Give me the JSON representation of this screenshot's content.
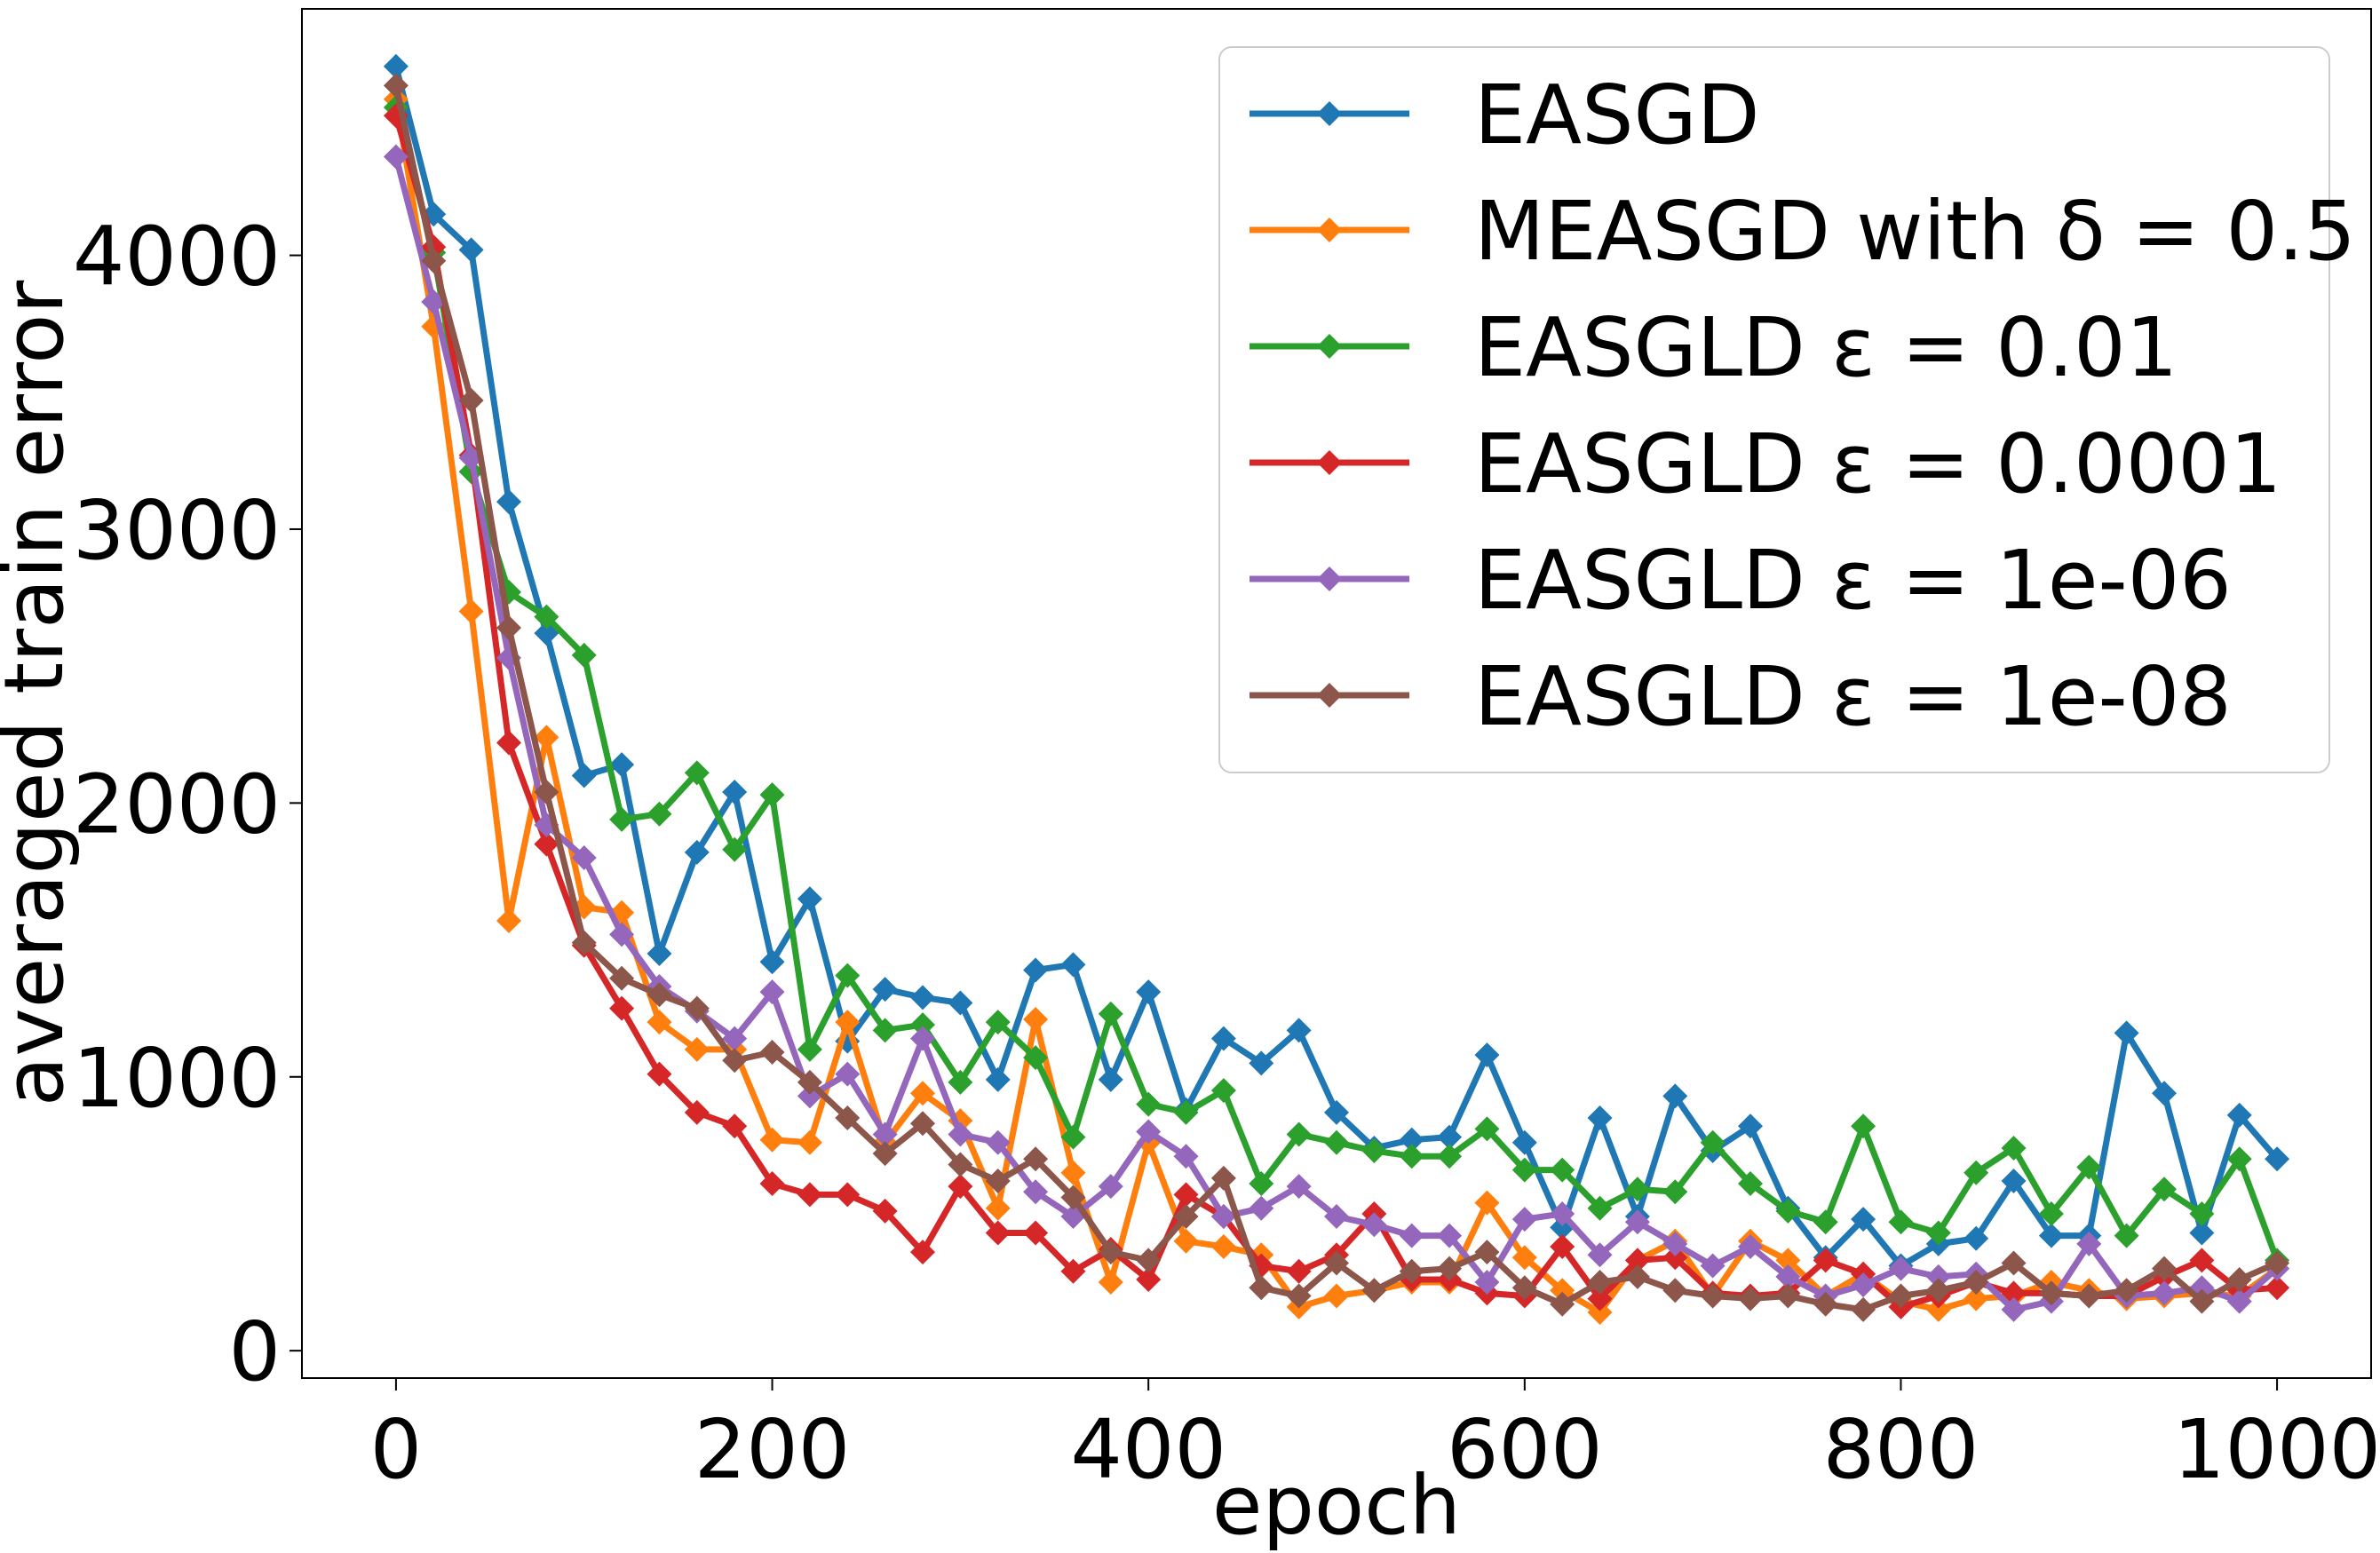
{
  "chart_data": {
    "type": "line",
    "xlabel": "epoch",
    "ylabel": "averaged train error",
    "xlim": [
      -50,
      1050
    ],
    "ylim": [
      -100,
      4900
    ],
    "xticks": [
      0,
      200,
      400,
      600,
      800,
      1000
    ],
    "yticks": [
      0,
      1000,
      2000,
      3000,
      4000
    ],
    "xtick_labels": [
      "0",
      "200",
      "400",
      "600",
      "800",
      "1000"
    ],
    "ytick_labels": [
      "0",
      "1000",
      "2000",
      "3000",
      "4000"
    ],
    "grid": false,
    "legend_position": "top-right",
    "marker": "diamond",
    "x": [
      0,
      20,
      40,
      60,
      80,
      100,
      120,
      140,
      160,
      180,
      200,
      220,
      240,
      260,
      280,
      300,
      320,
      340,
      360,
      380,
      400,
      420,
      440,
      460,
      480,
      500,
      520,
      540,
      560,
      580,
      600,
      620,
      640,
      660,
      680,
      700,
      720,
      740,
      760,
      780,
      800,
      820,
      840,
      860,
      880,
      900,
      920,
      940,
      960,
      980,
      1000
    ],
    "series": [
      {
        "name": "EASGD",
        "color": "#1f77b4",
        "values": [
          4690,
          4150,
          4020,
          3100,
          2620,
          2100,
          2140,
          1450,
          1820,
          2040,
          1420,
          1650,
          1130,
          1320,
          1290,
          1270,
          990,
          1390,
          1410,
          990,
          1310,
          880,
          1140,
          1050,
          1170,
          870,
          740,
          770,
          780,
          1080,
          760,
          450,
          850,
          490,
          930,
          730,
          820,
          520,
          340,
          480,
          310,
          390,
          410,
          620,
          420,
          420,
          1160,
          940,
          430,
          860,
          700
        ]
      },
      {
        "name": "MEASGD with δ = 0.5",
        "color": "#ff7f0e",
        "values": [
          4570,
          3740,
          2700,
          1570,
          2240,
          1620,
          1600,
          1200,
          1100,
          1100,
          770,
          760,
          1200,
          760,
          940,
          840,
          520,
          1210,
          650,
          250,
          760,
          400,
          380,
          350,
          160,
          200,
          220,
          250,
          250,
          540,
          340,
          220,
          140,
          330,
          400,
          200,
          400,
          330,
          200,
          280,
          180,
          150,
          190,
          200,
          250,
          220,
          190,
          200,
          210,
          200,
          300
        ]
      },
      {
        "name": "EASGLD ε = 0.01",
        "color": "#2ca02c",
        "values": [
          4540,
          4010,
          3210,
          2770,
          2680,
          2540,
          1940,
          1960,
          2110,
          1830,
          2030,
          1100,
          1370,
          1170,
          1190,
          980,
          1200,
          1070,
          780,
          1230,
          900,
          870,
          950,
          610,
          790,
          760,
          730,
          710,
          710,
          810,
          660,
          660,
          520,
          590,
          580,
          760,
          610,
          510,
          470,
          820,
          470,
          430,
          650,
          740,
          500,
          670,
          420,
          590,
          500,
          700,
          330
        ]
      },
      {
        "name": "EASGLD ε = 0.0001",
        "color": "#d62728",
        "values": [
          4510,
          4030,
          3270,
          2220,
          1850,
          1480,
          1250,
          1010,
          870,
          820,
          610,
          570,
          570,
          510,
          360,
          600,
          430,
          430,
          290,
          370,
          260,
          570,
          490,
          310,
          290,
          350,
          500,
          260,
          260,
          210,
          200,
          380,
          190,
          330,
          340,
          210,
          200,
          210,
          330,
          280,
          160,
          200,
          250,
          210,
          210,
          200,
          200,
          270,
          330,
          220,
          230
        ]
      },
      {
        "name": "EASGLD ε = 1e-06",
        "color": "#9467bd",
        "values": [
          4360,
          3830,
          3260,
          2530,
          1920,
          1800,
          1520,
          1330,
          1240,
          1140,
          1310,
          930,
          1010,
          790,
          1140,
          790,
          760,
          580,
          490,
          600,
          800,
          710,
          490,
          520,
          600,
          490,
          460,
          420,
          420,
          250,
          480,
          500,
          350,
          470,
          390,
          310,
          380,
          270,
          200,
          240,
          300,
          270,
          280,
          150,
          180,
          390,
          200,
          210,
          230,
          180,
          300
        ]
      },
      {
        "name": "EASGLD ε = 1e-08",
        "color": "#8c564b",
        "values": [
          4620,
          3980,
          3470,
          2640,
          2040,
          1490,
          1360,
          1300,
          1250,
          1060,
          1090,
          980,
          850,
          720,
          830,
          680,
          620,
          700,
          560,
          360,
          330,
          490,
          630,
          230,
          200,
          320,
          220,
          290,
          300,
          360,
          230,
          170,
          250,
          270,
          220,
          200,
          190,
          200,
          170,
          150,
          200,
          220,
          250,
          320,
          210,
          200,
          220,
          300,
          180,
          260,
          320
        ]
      }
    ]
  }
}
